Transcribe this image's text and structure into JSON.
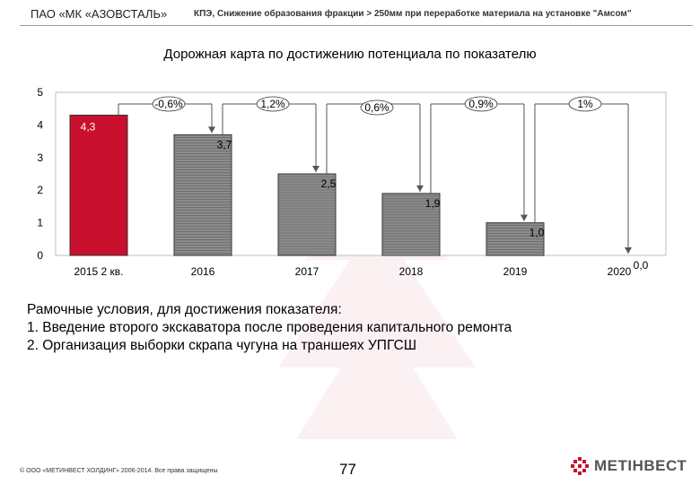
{
  "header": {
    "company": "ПАО «МК «АЗОВСТАЛЬ»",
    "kpi": "КПЭ, Снижение образования фракции > 250мм при переработке материала на установке \"Амсом\""
  },
  "page_title": "Дорожная карта по достижению потенциала по показателю",
  "chart_data": {
    "type": "bar",
    "title": "",
    "xlabel": "",
    "ylabel": "",
    "ylim": [
      0,
      5
    ],
    "y_ticks": [
      "0",
      "1",
      "2",
      "3",
      "4",
      "5"
    ],
    "categories": [
      "2015 2 кв.",
      "2016",
      "2017",
      "2018",
      "2019",
      "2020"
    ],
    "values": [
      4.3,
      3.7,
      2.5,
      1.9,
      1.0,
      0.0
    ],
    "value_labels": [
      "4,3",
      "3,7",
      "2,5",
      "1,9",
      "1,0",
      "0,0"
    ],
    "step_labels": [
      "-0,6%",
      "1,2%",
      "0,6%",
      "0,9%",
      "1%"
    ],
    "colors": {
      "first_bar": "#c8102e",
      "other_bars": "#8c8c8c",
      "connector": "#555555"
    },
    "grid": false,
    "legend": "none"
  },
  "conditions": {
    "heading": "Рамочные условия, для достижения показателя:",
    "items": [
      "1.  Введение второго экскаватора после проведения капитального ремонта",
      "2.  Организация выборки скрапа чугуна на траншеях УПГСШ"
    ]
  },
  "footer": {
    "copyright": "© ООО «МЕТИНВЕСТ ХОЛДИНГ» 2006-2014. Все права защищены",
    "page_number": "77",
    "logo_text": "МЕТІНВЕСТ",
    "logo_icon": "metinvest-logo-icon"
  }
}
